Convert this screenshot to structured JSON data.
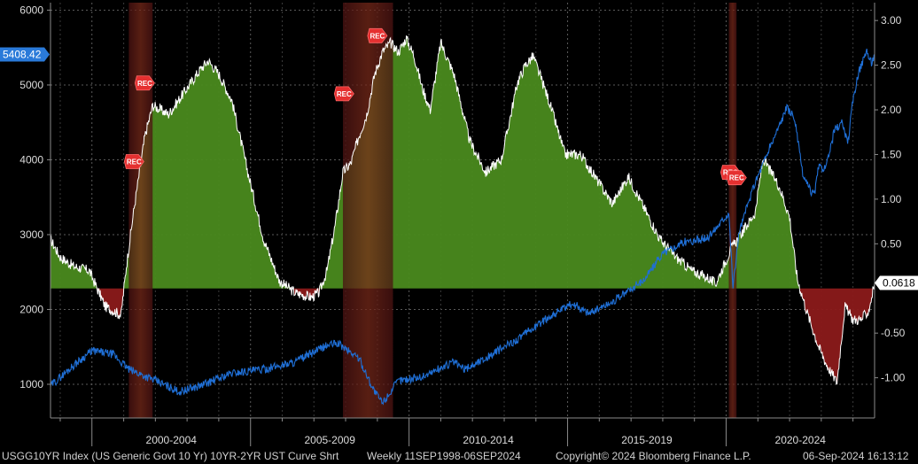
{
  "chart_data": {
    "type": "area",
    "x_range": [
      "1998-09-11",
      "2024-09-06"
    ],
    "x_group_labels": [
      "2000-2004",
      "2005-2009",
      "2010-2014",
      "2015-2019",
      "2020-2024"
    ],
    "left_axis": {
      "ticks": [
        1000,
        2000,
        3000,
        4000,
        5000,
        6000
      ],
      "range": [
        550,
        6100
      ]
    },
    "right_axis": {
      "ticks": [
        "-1.00",
        "-0.50",
        "0.50",
        "1.00",
        "1.50",
        "2.00",
        "2.50",
        "3.00"
      ],
      "range": [
        -1.45,
        3.2
      ]
    },
    "recessions": [
      {
        "start": "2001-03-01",
        "end": "2001-11-30"
      },
      {
        "start": "2007-12-01",
        "end": "2009-06-30"
      },
      {
        "start": "2020-02-01",
        "end": "2020-04-30"
      }
    ],
    "rec_markers": [
      {
        "date": "2001-05-01",
        "y": 1.42,
        "label": "REC"
      },
      {
        "date": "2001-09-01",
        "y": 2.3,
        "label": "REC"
      },
      {
        "date": "2007-12-15",
        "y": 2.18,
        "label": "REC"
      },
      {
        "date": "2009-01-01",
        "y": 2.83,
        "label": "REC"
      },
      {
        "date": "2020-02-20",
        "y": 1.3,
        "label": "REC"
      },
      {
        "date": "2020-05-01",
        "y": 1.24,
        "label": "REC"
      }
    ],
    "series": [
      {
        "name": "10YR-2YR UST Curve Shrt",
        "axis": "right",
        "color": "#ffffff",
        "fill_positive": "#4a8a1e",
        "fill_negative": "#8b1a1a",
        "x": [
          "1998-09-11",
          "1999-01-01",
          "1999-06-01",
          "1999-12-01",
          "2000-03-01",
          "2000-06-01",
          "2000-12-01",
          "2001-02-01",
          "2001-05-01",
          "2001-09-01",
          "2001-12-01",
          "2002-06-01",
          "2002-12-01",
          "2003-06-01",
          "2003-09-01",
          "2004-01-01",
          "2004-06-01",
          "2004-12-01",
          "2005-06-01",
          "2005-12-01",
          "2006-06-01",
          "2006-12-01",
          "2007-03-01",
          "2007-06-01",
          "2007-09-01",
          "2007-12-01",
          "2008-03-01",
          "2008-06-01",
          "2008-09-01",
          "2008-12-01",
          "2009-03-01",
          "2009-06-01",
          "2009-09-01",
          "2009-12-01",
          "2010-03-01",
          "2010-06-01",
          "2010-09-01",
          "2011-01-01",
          "2011-06-01",
          "2011-12-01",
          "2012-06-01",
          "2012-12-01",
          "2013-06-01",
          "2013-09-01",
          "2013-12-01",
          "2014-06-01",
          "2014-12-01",
          "2015-06-01",
          "2015-12-01",
          "2016-06-01",
          "2016-12-01",
          "2017-06-01",
          "2017-12-01",
          "2018-06-01",
          "2018-12-01",
          "2019-06-01",
          "2019-09-01",
          "2019-12-01",
          "2020-03-01",
          "2020-06-01",
          "2020-12-01",
          "2021-03-01",
          "2021-06-01",
          "2021-09-01",
          "2022-01-01",
          "2022-04-01",
          "2022-08-01",
          "2022-12-01",
          "2023-03-01",
          "2023-07-01",
          "2023-10-01",
          "2024-01-01",
          "2024-04-01",
          "2024-07-01",
          "2024-09-06"
        ],
        "values": [
          0.55,
          0.35,
          0.25,
          0.2,
          0.0,
          -0.2,
          -0.3,
          0.25,
          0.9,
          1.7,
          2.05,
          1.95,
          2.2,
          2.45,
          2.55,
          2.4,
          2.1,
          1.3,
          0.55,
          0.08,
          -0.05,
          -0.1,
          -0.05,
          0.2,
          0.7,
          1.3,
          1.4,
          1.7,
          1.95,
          2.4,
          2.65,
          2.75,
          2.65,
          2.8,
          2.6,
          2.25,
          2.0,
          2.75,
          2.4,
          1.65,
          1.3,
          1.45,
          2.3,
          2.5,
          2.6,
          2.1,
          1.5,
          1.5,
          1.22,
          0.95,
          1.25,
          0.9,
          0.55,
          0.35,
          0.2,
          0.12,
          0.05,
          0.25,
          0.45,
          0.58,
          0.85,
          1.45,
          1.3,
          1.15,
          0.8,
          0.1,
          -0.3,
          -0.65,
          -0.85,
          -1.05,
          -0.2,
          -0.35,
          -0.35,
          -0.25,
          0.06
        ]
      },
      {
        "name": "USGG10YR Index",
        "axis": "left",
        "color": "#1f6fd6",
        "x": [
          "1998-09-11",
          "1999-06-01",
          "2000-01-01",
          "2000-09-01",
          "2001-03-01",
          "2002-01-01",
          "2002-10-01",
          "2003-06-01",
          "2004-06-01",
          "2005-06-01",
          "2006-06-01",
          "2007-06-01",
          "2007-10-01",
          "2008-06-01",
          "2008-12-01",
          "2009-03-01",
          "2009-09-01",
          "2010-06-01",
          "2011-06-01",
          "2011-10-01",
          "2012-06-01",
          "2013-06-01",
          "2014-06-01",
          "2015-03-01",
          "2015-09-01",
          "2016-06-01",
          "2017-06-01",
          "2018-01-01",
          "2018-09-01",
          "2019-06-01",
          "2020-02-01",
          "2020-03-20",
          "2020-06-01",
          "2020-12-01",
          "2021-06-01",
          "2021-12-01",
          "2022-03-01",
          "2022-06-01",
          "2022-09-01",
          "2022-10-15",
          "2022-12-01",
          "2023-03-01",
          "2023-06-01",
          "2023-09-01",
          "2023-11-01",
          "2024-01-01",
          "2024-03-01",
          "2024-06-01",
          "2024-08-01",
          "2024-09-06"
        ],
        "values": [
          980,
          1250,
          1450,
          1400,
          1200,
          1050,
          900,
          980,
          1150,
          1200,
          1300,
          1520,
          1550,
          1350,
          900,
          750,
          1050,
          1100,
          1300,
          1200,
          1350,
          1600,
          1900,
          2080,
          1950,
          2100,
          2400,
          2750,
          2900,
          2950,
          3300,
          2300,
          3050,
          3700,
          4200,
          4700,
          4550,
          3800,
          3580,
          3550,
          3900,
          3900,
          4400,
          4500,
          4200,
          4800,
          5150,
          5450,
          5300,
          5408.42
        ]
      }
    ],
    "last_values": {
      "left": "5408.42",
      "right": "0.0618"
    }
  },
  "footer": {
    "ticker": "USGG10YR Index (US Generic Govt 10 Yr) 10YR-2YR UST Curve Shrt",
    "range": "Weekly 11SEP1998-06SEP2024",
    "copyright": "Copyright© 2024 Bloomberg Finance L.P.",
    "timestamp": "06-Sep-2024 16:13:12"
  }
}
